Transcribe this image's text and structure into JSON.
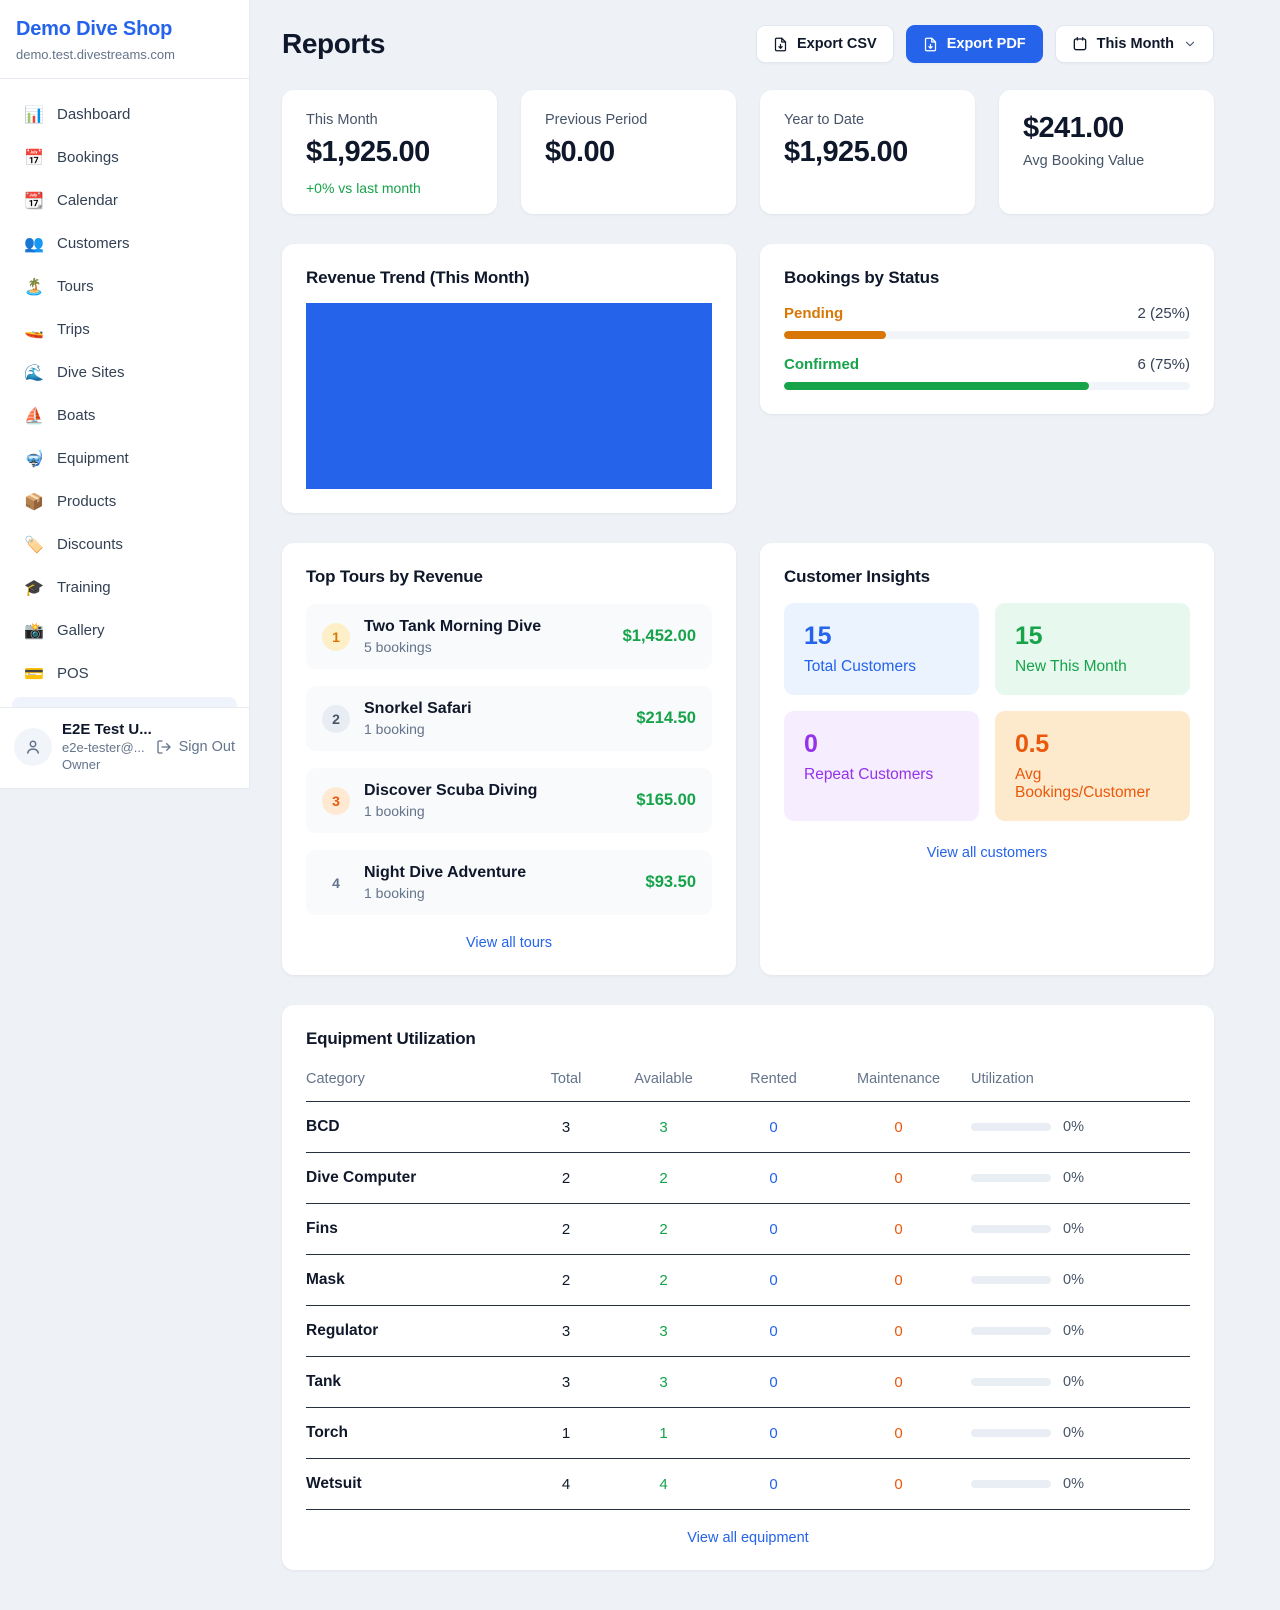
{
  "app": {
    "shop_name": "Demo Dive Shop",
    "shop_domain": "demo.test.divestreams.com"
  },
  "sidebar": {
    "items": [
      {
        "icon": "📊",
        "icon_name": "dashboard-icon",
        "label": "Dashboard"
      },
      {
        "icon": "📅",
        "icon_name": "bookings-icon",
        "label": "Bookings"
      },
      {
        "icon": "📆",
        "icon_name": "calendar-icon",
        "label": "Calendar"
      },
      {
        "icon": "👥",
        "icon_name": "customers-icon",
        "label": "Customers"
      },
      {
        "icon": "🏝️",
        "icon_name": "tours-icon",
        "label": "Tours"
      },
      {
        "icon": "🚤",
        "icon_name": "trips-icon",
        "label": "Trips"
      },
      {
        "icon": "🌊",
        "icon_name": "dive-sites-icon",
        "label": "Dive Sites"
      },
      {
        "icon": "⛵",
        "icon_name": "boats-icon",
        "label": "Boats"
      },
      {
        "icon": "🤿",
        "icon_name": "equipment-icon",
        "label": "Equipment"
      },
      {
        "icon": "📦",
        "icon_name": "products-icon",
        "label": "Products"
      },
      {
        "icon": "🏷️",
        "icon_name": "discounts-icon",
        "label": "Discounts"
      },
      {
        "icon": "🎓",
        "icon_name": "training-icon",
        "label": "Training"
      },
      {
        "icon": "📸",
        "icon_name": "gallery-icon",
        "label": "Gallery"
      },
      {
        "icon": "💳",
        "icon_name": "pos-icon",
        "label": "POS"
      }
    ],
    "user": {
      "name": "E2E Test U...",
      "email": "e2e-tester@...",
      "role": "Owner",
      "sign_out_label": "Sign Out"
    }
  },
  "header": {
    "title": "Reports",
    "export_csv_label": "Export CSV",
    "export_pdf_label": "Export PDF",
    "period_label": "This Month"
  },
  "stats": [
    {
      "label": "This Month",
      "value": "$1,925.00",
      "delta": "+0% vs last month",
      "reversed": false
    },
    {
      "label": "Previous Period",
      "value": "$0.00",
      "delta": "",
      "reversed": false
    },
    {
      "label": "Year to Date",
      "value": "$1,925.00",
      "delta": "",
      "reversed": false
    },
    {
      "label": "Avg Booking Value",
      "value": "$241.00",
      "delta": "",
      "reversed": true
    }
  ],
  "revenue_trend": {
    "title": "Revenue Trend (This Month)",
    "bar_color": "#2563eb"
  },
  "chart_data": [
    {
      "type": "bar",
      "title": "Revenue Trend (This Month)",
      "categories": [
        "This Month"
      ],
      "values": [
        1925
      ],
      "ylim": [
        0,
        1925
      ],
      "legend": false,
      "note": "single solid bar filling entire plot area",
      "color": "#2563eb"
    },
    {
      "type": "bar",
      "title": "Bookings by Status",
      "categories": [
        "Pending",
        "Confirmed"
      ],
      "values": [
        2,
        6
      ],
      "labels": [
        "2 (25%)",
        "6 (75%)"
      ],
      "colors": [
        "#d97706",
        "#16a34a"
      ]
    }
  ],
  "bookings_by_status": {
    "title": "Bookings by Status",
    "rows": [
      {
        "label": "Pending",
        "value": "2 (25%)",
        "percent": 25,
        "color": "#d97706"
      },
      {
        "label": "Confirmed",
        "value": "6 (75%)",
        "percent": 75,
        "color": "#16a34a"
      }
    ]
  },
  "top_tours": {
    "title": "Top Tours by Revenue",
    "link_label": "View all tours",
    "items": [
      {
        "rank": "1",
        "theme": "amber",
        "name": "Two Tank Morning Dive",
        "bookings": "5 bookings",
        "revenue": "$1,452.00"
      },
      {
        "rank": "2",
        "theme": "gray",
        "name": "Snorkel Safari",
        "bookings": "1 booking",
        "revenue": "$214.50"
      },
      {
        "rank": "3",
        "theme": "orange",
        "name": "Discover Scuba Diving",
        "bookings": "1 booking",
        "revenue": "$165.00"
      },
      {
        "rank": "4",
        "theme": "plain",
        "name": "Night Dive Adventure",
        "bookings": "1 booking",
        "revenue": "$93.50"
      }
    ]
  },
  "customer_insights": {
    "title": "Customer Insights",
    "link_label": "View all customers",
    "tiles": [
      {
        "value": "15",
        "label": "Total Customers",
        "theme": "blue"
      },
      {
        "value": "15",
        "label": "New This Month",
        "theme": "green"
      },
      {
        "value": "0",
        "label": "Repeat Customers",
        "theme": "purple"
      },
      {
        "value": "0.5",
        "label": "Avg Bookings/Customer",
        "theme": "orange"
      }
    ]
  },
  "equipment": {
    "title": "Equipment Utilization",
    "link_label": "View all equipment",
    "columns": [
      "Category",
      "Total",
      "Available",
      "Rented",
      "Maintenance",
      "Utilization"
    ],
    "rows": [
      {
        "category": "BCD",
        "total": "3",
        "available": "3",
        "rented": "0",
        "maintenance": "0",
        "utilization": "0%",
        "percent": 0
      },
      {
        "category": "Dive Computer",
        "total": "2",
        "available": "2",
        "rented": "0",
        "maintenance": "0",
        "utilization": "0%",
        "percent": 0
      },
      {
        "category": "Fins",
        "total": "2",
        "available": "2",
        "rented": "0",
        "maintenance": "0",
        "utilization": "0%",
        "percent": 0
      },
      {
        "category": "Mask",
        "total": "2",
        "available": "2",
        "rented": "0",
        "maintenance": "0",
        "utilization": "0%",
        "percent": 0
      },
      {
        "category": "Regulator",
        "total": "3",
        "available": "3",
        "rented": "0",
        "maintenance": "0",
        "utilization": "0%",
        "percent": 0
      },
      {
        "category": "Tank",
        "total": "3",
        "available": "3",
        "rented": "0",
        "maintenance": "0",
        "utilization": "0%",
        "percent": 0
      },
      {
        "category": "Torch",
        "total": "1",
        "available": "1",
        "rented": "0",
        "maintenance": "0",
        "utilization": "0%",
        "percent": 0
      },
      {
        "category": "Wetsuit",
        "total": "4",
        "available": "4",
        "rented": "0",
        "maintenance": "0",
        "utilization": "0%",
        "percent": 0
      }
    ]
  },
  "colors": {
    "primary_blue": "#2563eb",
    "green": "#16a34a",
    "amber": "#d97706",
    "orange": "#ea580c",
    "purple": "#9333ea",
    "page_background": "#eef2f6"
  }
}
